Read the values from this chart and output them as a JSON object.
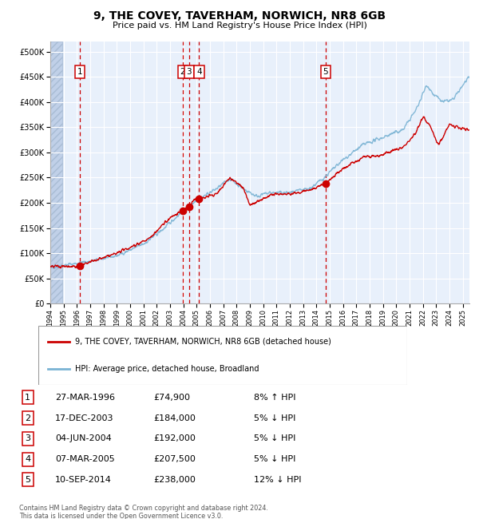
{
  "title": "9, THE COVEY, TAVERHAM, NORWICH, NR8 6GB",
  "subtitle": "Price paid vs. HM Land Registry's House Price Index (HPI)",
  "red_label": "9, THE COVEY, TAVERHAM, NORWICH, NR8 6GB (detached house)",
  "blue_label": "HPI: Average price, detached house, Broadland",
  "footer1": "Contains HM Land Registry data © Crown copyright and database right 2024.",
  "footer2": "This data is licensed under the Open Government Licence v3.0.",
  "transactions": [
    {
      "id": 1,
      "date": "27-MAR-1996",
      "price": 74900,
      "pct": "8%",
      "dir": "↑",
      "year": 1996.23
    },
    {
      "id": 2,
      "date": "17-DEC-2003",
      "price": 184000,
      "pct": "5%",
      "dir": "↓",
      "year": 2003.96
    },
    {
      "id": 3,
      "date": "04-JUN-2004",
      "price": 192000,
      "pct": "5%",
      "dir": "↓",
      "year": 2004.43
    },
    {
      "id": 4,
      "date": "07-MAR-2005",
      "price": 207500,
      "pct": "5%",
      "dir": "↓",
      "year": 2005.18
    },
    {
      "id": 5,
      "date": "10-SEP-2014",
      "price": 238000,
      "pct": "12%",
      "dir": "↓",
      "year": 2014.69
    }
  ],
  "ylim": [
    0,
    520000
  ],
  "xlim_start": 1994.0,
  "xlim_end": 2025.5,
  "plot_bg": "#e8f0fb",
  "grid_color": "#ffffff",
  "red_color": "#cc0000",
  "blue_color": "#7ab3d4",
  "dashed_color": "#cc0000",
  "hatch_color": "#c0d0e8"
}
